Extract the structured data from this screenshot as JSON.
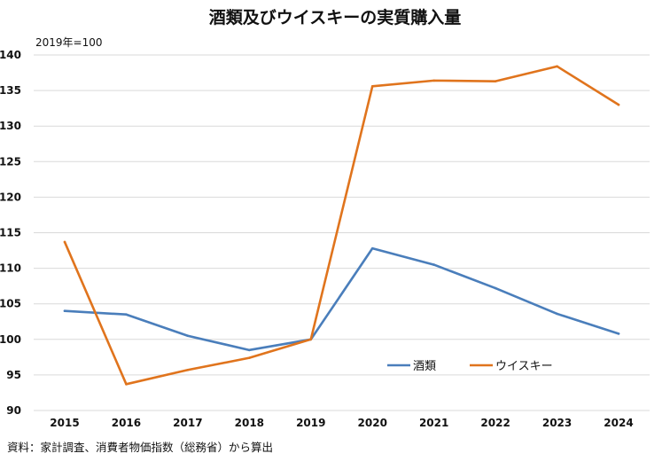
{
  "chart_data": {
    "type": "line",
    "title": "酒類及びウイスキーの実質購入量",
    "unit_label": "2019年=100",
    "xlabel": "",
    "ylabel": "",
    "categories": [
      "2015",
      "2016",
      "2017",
      "2018",
      "2019",
      "2020",
      "2021",
      "2022",
      "2023",
      "2024"
    ],
    "ylim": [
      90,
      140
    ],
    "yticks": [
      90,
      95,
      100,
      105,
      110,
      115,
      120,
      125,
      130,
      135,
      140
    ],
    "grid": true,
    "legend_position": "bottom-right inside",
    "series": [
      {
        "name": "酒類",
        "color": "#4a7ebb",
        "values": [
          104.0,
          103.5,
          100.5,
          98.5,
          100.0,
          112.8,
          110.5,
          107.2,
          103.6,
          100.8
        ]
      },
      {
        "name": "ウイスキー",
        "color": "#e0741d",
        "values": [
          113.7,
          93.7,
          95.7,
          97.4,
          100.0,
          135.6,
          136.4,
          136.3,
          138.4,
          133.0
        ]
      }
    ],
    "source": "資料：家計調査、消費者物価指数（総務省）から算出"
  }
}
